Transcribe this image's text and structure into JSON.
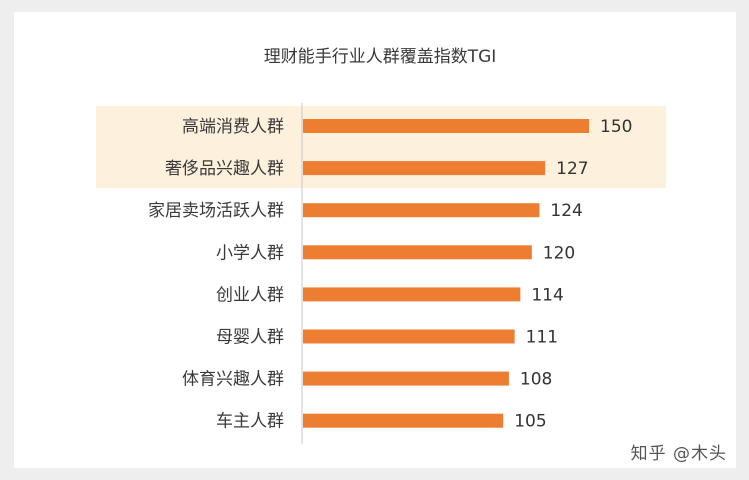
{
  "chart_data": {
    "type": "bar",
    "orientation": "horizontal",
    "title": "理财能手行业人群覆盖指数TGI",
    "categories": [
      "高端消费人群",
      "奢侈品兴趣人群",
      "家居卖场活跃人群",
      "小学人群",
      "创业人群",
      "母婴人群",
      "体育兴趣人群",
      "车主人群"
    ],
    "values": [
      150,
      127,
      124,
      120,
      114,
      111,
      108,
      105
    ],
    "highlighted_categories": [
      "高端消费人群",
      "奢侈品兴趣人群"
    ],
    "xlim": [
      0,
      150
    ],
    "grid": false,
    "bar_color": "#ed7d31",
    "highlight_color": "#fdf1de"
  },
  "watermark": "知乎 @木头"
}
